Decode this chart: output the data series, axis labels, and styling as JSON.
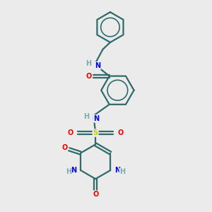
{
  "bg_color": "#ebebeb",
  "bond_color": "#2f6b6b",
  "bond_width": 1.6,
  "atom_colors": {
    "N": "#0000ee",
    "O": "#ee0000",
    "S": "#cccc00",
    "C": "#2f6b6b",
    "H": "#7aacac"
  },
  "font_size": 7.0
}
